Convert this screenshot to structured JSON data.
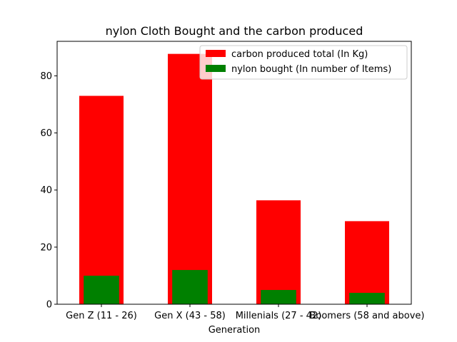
{
  "chart_data": {
    "type": "bar",
    "title": "nylon Cloth Bought and the carbon produced",
    "xlabel": "Generation",
    "ylabel": "",
    "categories": [
      "Gen Z (11 - 26)",
      "Gen X (43 - 58)",
      "Millenials (27 - 42)",
      "Boomers (58 and above)"
    ],
    "series": [
      {
        "name": "carbon produced total (In Kg)",
        "color": "#ff0000",
        "values": [
          73,
          87.7,
          36.4,
          29.1
        ]
      },
      {
        "name": "nylon bought (In number of Items)",
        "color": "#008000",
        "values": [
          10,
          12,
          5,
          4
        ]
      }
    ],
    "ylim": [
      0,
      92.1
    ],
    "yticks": [
      0,
      20,
      40,
      60,
      80
    ],
    "grid": false,
    "legend_position": "top-right"
  }
}
